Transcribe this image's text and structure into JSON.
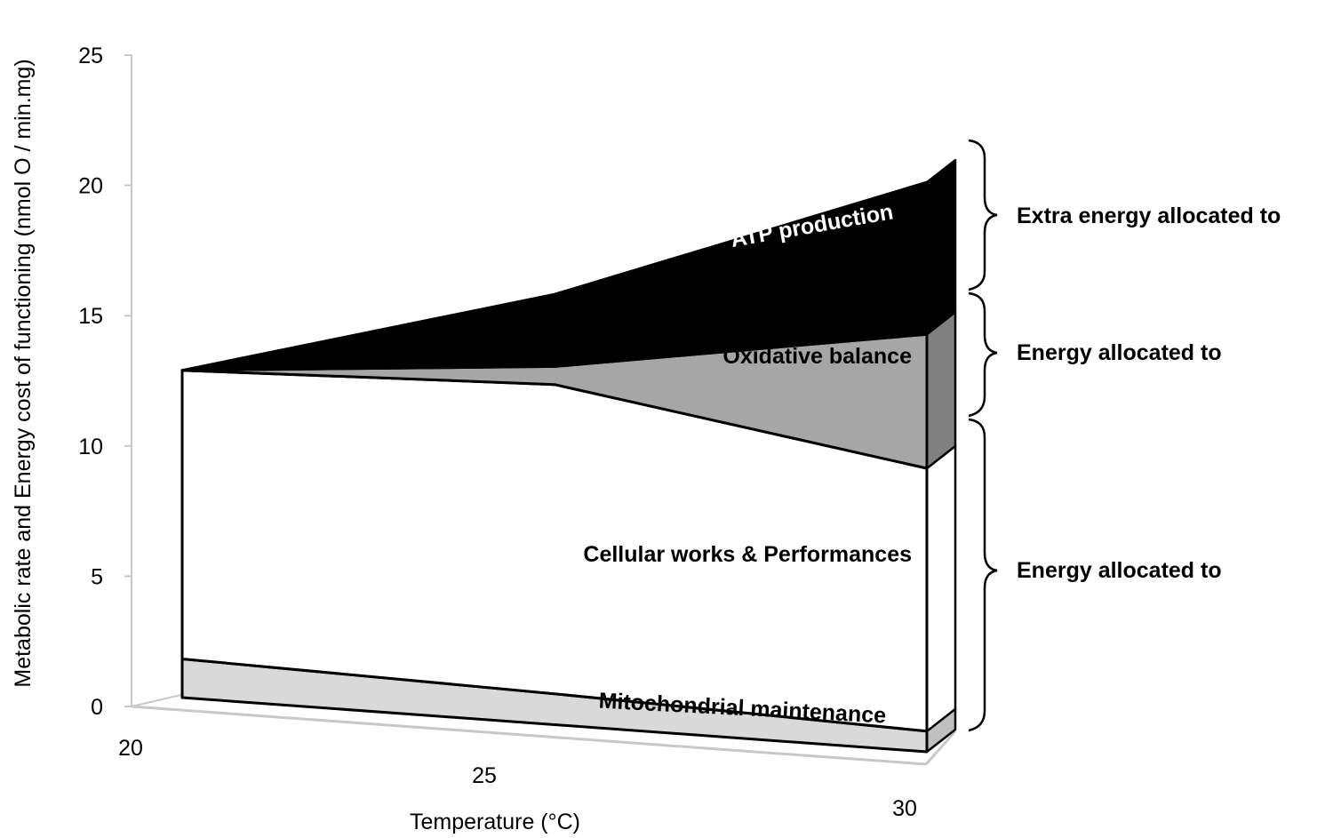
{
  "chart_data": {
    "type": "area",
    "title": "",
    "xlabel": "Temperature (°C)",
    "ylabel": "Metabolic rate and Energy cost of functioning (nmol O / min.mg)",
    "ylim": [
      0,
      25
    ],
    "xlim": [
      20,
      30
    ],
    "y_ticks": [
      "0",
      "5",
      "10",
      "15",
      "20",
      "25"
    ],
    "x_ticks": [
      "20",
      "25",
      "30"
    ],
    "grid": false,
    "stacked": true,
    "x": [
      20,
      25,
      30
    ],
    "series": [
      {
        "name": "Mitochondrial maintenance",
        "values": [
          1.5,
          1.2,
          0.8
        ],
        "color": "#d9d9d9",
        "label_color": "#000000"
      },
      {
        "name": "Cellular works & Performances",
        "values": [
          11.2,
          12.0,
          10.2
        ],
        "color": "#ffffff",
        "label_color": "#000000"
      },
      {
        "name": "Oxidative balance",
        "values": [
          0.0,
          0.7,
          5.2
        ],
        "color": "#a6a6a6",
        "label_color": "#000000"
      },
      {
        "name": "ATP production",
        "values": [
          0.0,
          2.8,
          5.9
        ],
        "color": "#000000",
        "label_color": "#ffffff"
      }
    ],
    "annotations": [
      "Extra energy allocated to",
      "Energy allocated to",
      "Energy allocated to"
    ]
  }
}
